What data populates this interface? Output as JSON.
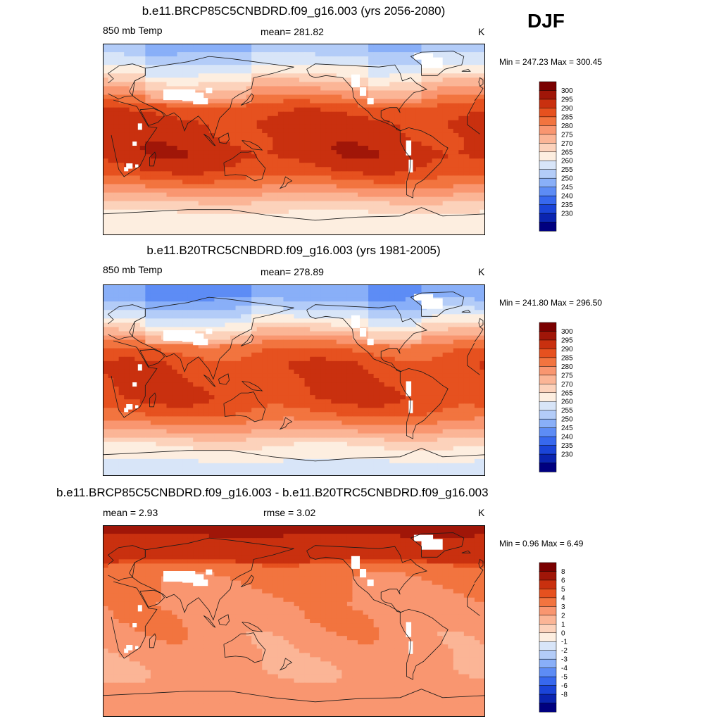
{
  "season": "DJF",
  "colors": {
    "temp_scale": [
      "#00007f",
      "#0a24b0",
      "#1a44d8",
      "#3768ee",
      "#5d8cf5",
      "#89aff8",
      "#b3ccf8",
      "#d8e5f8",
      "#fdeee0",
      "#fcd2bb",
      "#fbb596",
      "#f99670",
      "#f2743f",
      "#e6511f",
      "#c9300f",
      "#a01608",
      "#7a0000"
    ],
    "diff_scale": [
      "#00007f",
      "#0a24b0",
      "#1a44d8",
      "#3768ee",
      "#5d8cf5",
      "#89aff8",
      "#b3ccf8",
      "#d8e5f8",
      "#fdeee0",
      "#fcd2bb",
      "#fbb596",
      "#f99670",
      "#f2743f",
      "#e6511f",
      "#c9300f",
      "#a01608",
      "#7a0000"
    ],
    "missing": "#ffffff",
    "coast": "#1a1a1a"
  },
  "panels": [
    {
      "title": "b.e11.BRCP85C5CNBDRD.f09_g16.003 (yrs 2056-2080)",
      "left_label": "850 mb Temp",
      "center_label": "mean= 281.82",
      "units": "K",
      "minmax": "Min = 247.23 Max = 300.45"
    },
    {
      "title": "b.e11.B20TRC5CNBDRD.f09_g16.003 (yrs 1981-2005)",
      "left_label": "850 mb Temp",
      "center_label": "mean= 278.89",
      "units": "K",
      "minmax": "Min = 241.80 Max = 296.50"
    },
    {
      "title": "b.e11.BRCP85C5CNBDRD.f09_g16.003 - b.e11.B20TRC5CNBDRD.f09_g16.003",
      "left_label": "mean =   2.93",
      "center_label": "rmse =   3.02",
      "units": "K",
      "minmax": "Min =   0.96 Max =   6.49"
    }
  ],
  "chart_data": [
    {
      "type": "heatmap",
      "variable": "850 mb Temp",
      "units": "K",
      "season": "DJF",
      "mean": 281.82,
      "min": 247.23,
      "max": 300.45,
      "lon_range": [
        0,
        360
      ],
      "lat_range": [
        -90,
        90
      ],
      "colorbar_levels": [
        "300",
        "295",
        "290",
        "285",
        "280",
        "275",
        "270",
        "265",
        "260",
        "255",
        "250",
        "245",
        "240",
        "235",
        "230"
      ],
      "zonal_profile": [
        {
          "lat": 90,
          "value": 252
        },
        {
          "lat": 75,
          "value": 257
        },
        {
          "lat": 60,
          "value": 266
        },
        {
          "lat": 50,
          "value": 273
        },
        {
          "lat": 40,
          "value": 280
        },
        {
          "lat": 30,
          "value": 287
        },
        {
          "lat": 15,
          "value": 292
        },
        {
          "lat": 0,
          "value": 292
        },
        {
          "lat": -15,
          "value": 293
        },
        {
          "lat": -30,
          "value": 289
        },
        {
          "lat": -45,
          "value": 280
        },
        {
          "lat": -60,
          "value": 269
        },
        {
          "lat": -75,
          "value": 262
        },
        {
          "lat": -90,
          "value": 260
        }
      ]
    },
    {
      "type": "heatmap",
      "variable": "850 mb Temp",
      "units": "K",
      "season": "DJF",
      "mean": 278.89,
      "min": 241.8,
      "max": 296.5,
      "lon_range": [
        0,
        360
      ],
      "lat_range": [
        -90,
        90
      ],
      "colorbar_levels": [
        "300",
        "295",
        "290",
        "285",
        "280",
        "275",
        "270",
        "265",
        "260",
        "255",
        "250",
        "245",
        "240",
        "235",
        "230"
      ],
      "zonal_profile": [
        {
          "lat": 90,
          "value": 246
        },
        {
          "lat": 75,
          "value": 250
        },
        {
          "lat": 60,
          "value": 259
        },
        {
          "lat": 50,
          "value": 267
        },
        {
          "lat": 40,
          "value": 276
        },
        {
          "lat": 30,
          "value": 284
        },
        {
          "lat": 15,
          "value": 289
        },
        {
          "lat": 0,
          "value": 289
        },
        {
          "lat": -15,
          "value": 290
        },
        {
          "lat": -30,
          "value": 286
        },
        {
          "lat": -45,
          "value": 277
        },
        {
          "lat": -60,
          "value": 266
        },
        {
          "lat": -75,
          "value": 260
        },
        {
          "lat": -90,
          "value": 258
        }
      ]
    },
    {
      "type": "heatmap",
      "variable": "850 mb Temp difference",
      "units": "K",
      "season": "DJF",
      "mean": 2.93,
      "rmse": 3.02,
      "min": 0.96,
      "max": 6.49,
      "lon_range": [
        0,
        360
      ],
      "lat_range": [
        -90,
        90
      ],
      "colorbar_levels": [
        "8",
        "6",
        "5",
        "4",
        "3",
        "2",
        "1",
        "0",
        "-1",
        "-2",
        "-3",
        "-4",
        "-5",
        "-6",
        "-8"
      ],
      "zonal_profile": [
        {
          "lat": 90,
          "value": 5.5
        },
        {
          "lat": 75,
          "value": 5.0
        },
        {
          "lat": 60,
          "value": 4.5
        },
        {
          "lat": 50,
          "value": 3.5
        },
        {
          "lat": 40,
          "value": 3.2
        },
        {
          "lat": 30,
          "value": 3.0
        },
        {
          "lat": 15,
          "value": 2.6
        },
        {
          "lat": 0,
          "value": 2.7
        },
        {
          "lat": -15,
          "value": 2.5
        },
        {
          "lat": -30,
          "value": 2.4
        },
        {
          "lat": -45,
          "value": 2.1
        },
        {
          "lat": -60,
          "value": 2.3
        },
        {
          "lat": -75,
          "value": 2.8
        },
        {
          "lat": -90,
          "value": 3.0
        }
      ]
    }
  ]
}
